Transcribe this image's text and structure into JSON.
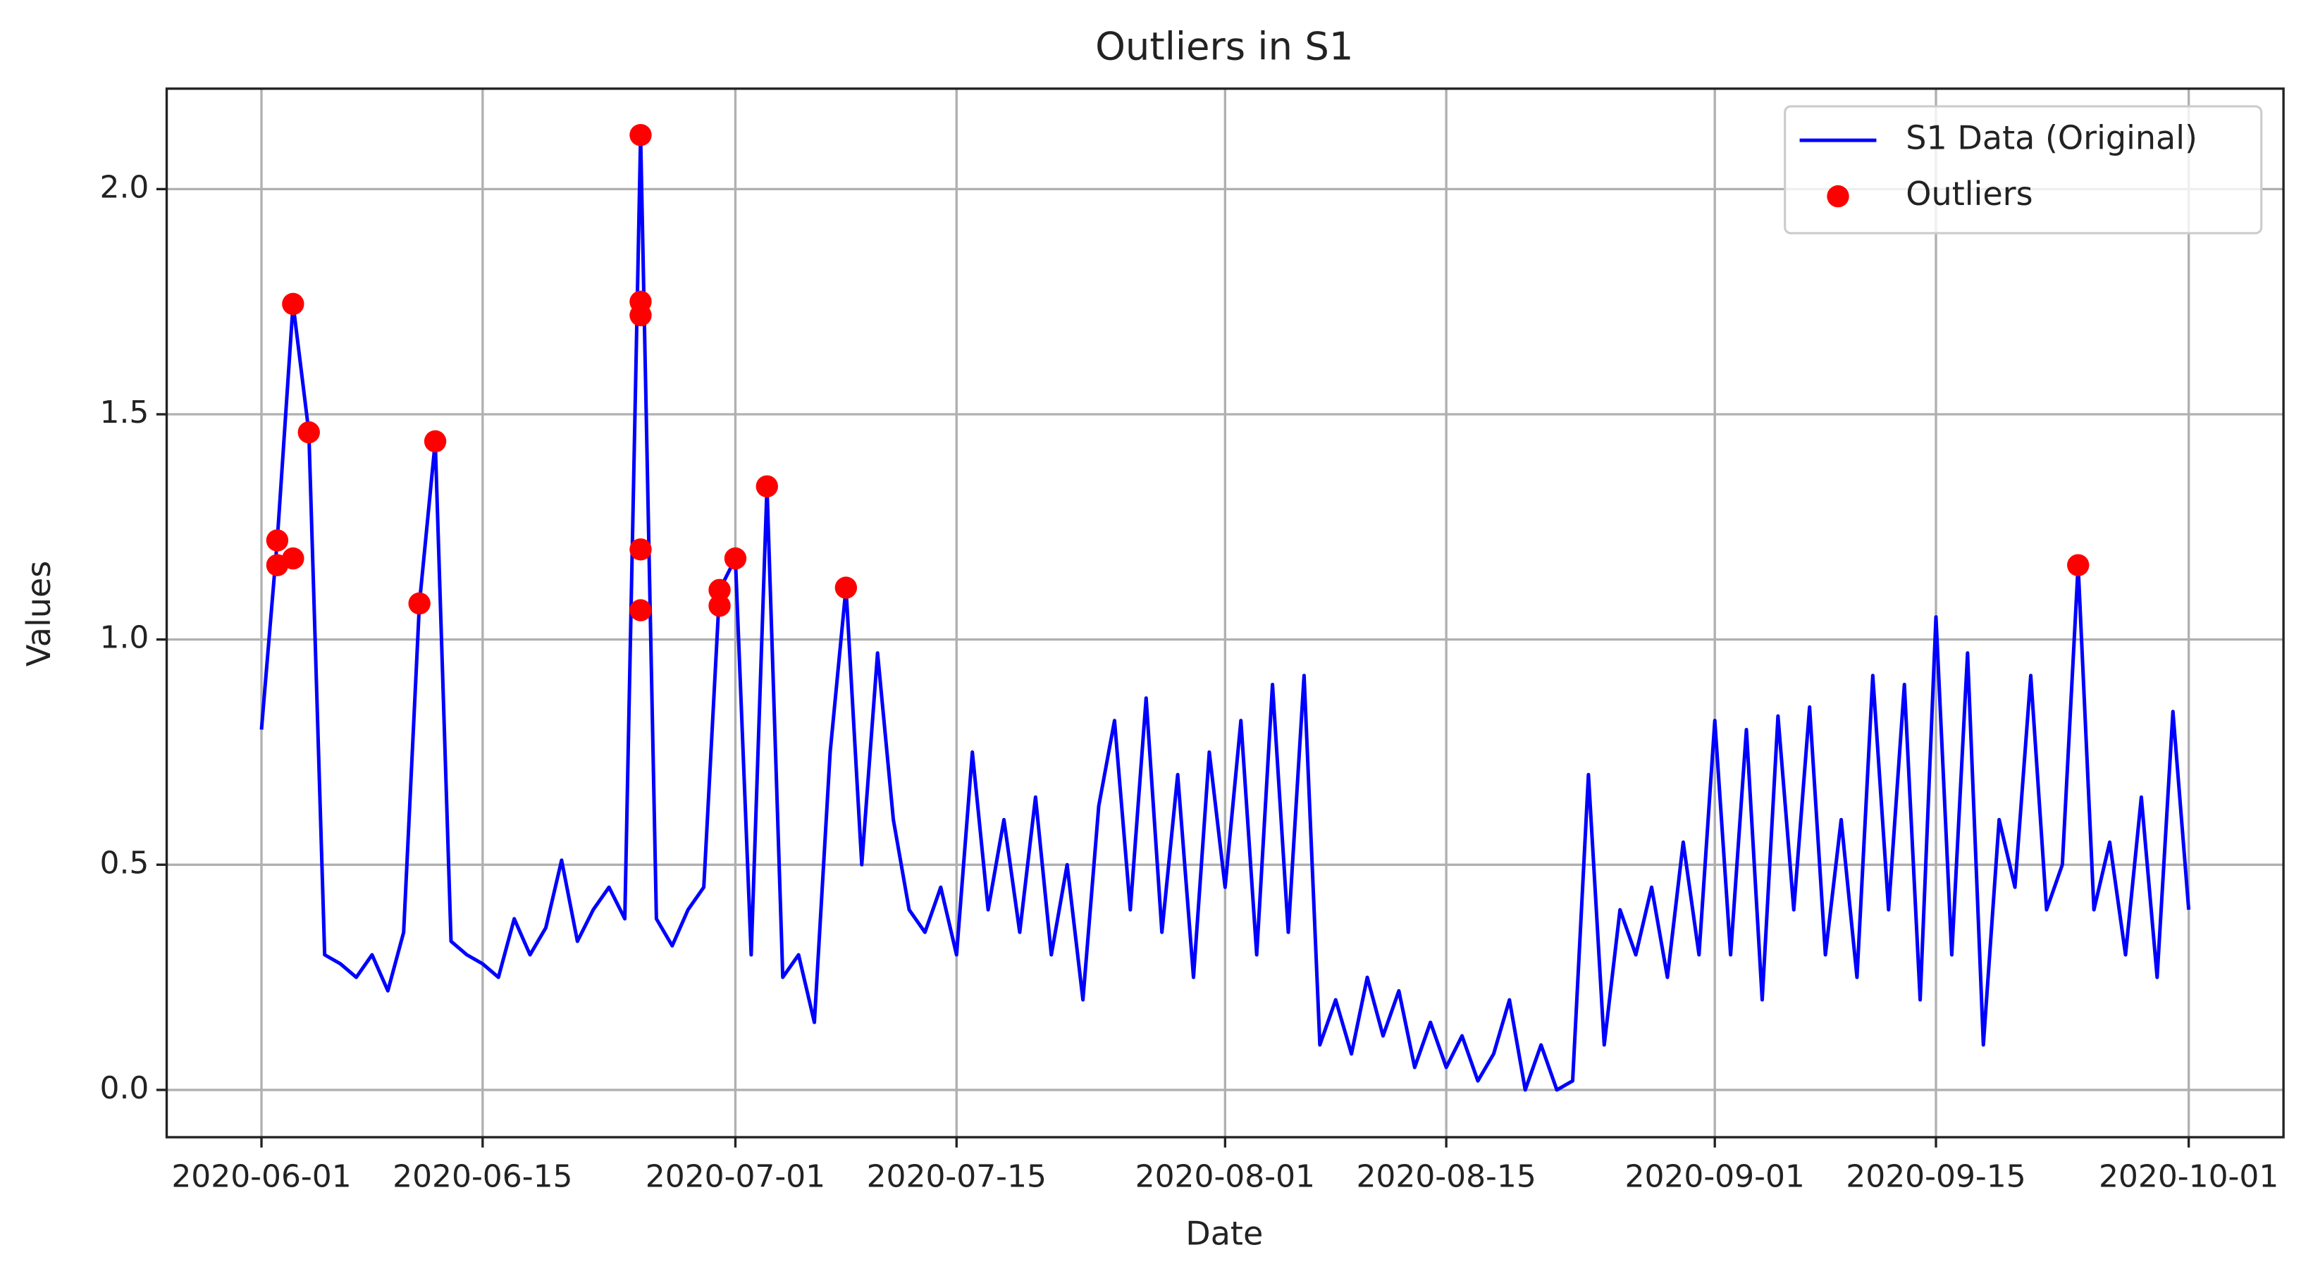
{
  "chart_data": {
    "type": "line",
    "title": "Outliers in S1",
    "xlabel": "Date",
    "ylabel": "Values",
    "grid": true,
    "legend": "upper right",
    "xlim": [
      "2020-05-26",
      "2020-10-07"
    ],
    "xticks": [
      "2020-06-01",
      "2020-06-15",
      "2020-07-01",
      "2020-07-15",
      "2020-08-01",
      "2020-08-15",
      "2020-09-01",
      "2020-09-15",
      "2020-10-01"
    ],
    "ylim": [
      -0.105,
      2.223
    ],
    "yticks": [
      {
        "value": 0,
        "label": "0.0"
      },
      0.5,
      {
        "value": 1,
        "label": "1.0"
      },
      1.5,
      {
        "value": 2,
        "label": "2.0"
      }
    ],
    "series": [
      {
        "name": "S1 Data (Original)",
        "type": "line",
        "color": "#0000ff",
        "x": [
          "2020-06-01",
          "2020-06-02",
          "2020-06-03",
          "2020-06-04",
          "2020-06-05",
          "2020-06-06",
          "2020-06-07",
          "2020-06-08",
          "2020-06-09",
          "2020-06-10",
          "2020-06-11",
          "2020-06-12",
          "2020-06-13",
          "2020-06-14",
          "2020-06-15",
          "2020-06-16",
          "2020-06-17",
          "2020-06-18",
          "2020-06-19",
          "2020-06-20",
          "2020-06-21",
          "2020-06-22",
          "2020-06-23",
          "2020-06-24",
          "2020-06-25",
          "2020-06-26",
          "2020-06-27",
          "2020-06-28",
          "2020-06-29",
          "2020-06-30",
          "2020-07-01",
          "2020-07-02",
          "2020-07-03",
          "2020-07-04",
          "2020-07-05",
          "2020-07-06",
          "2020-07-07",
          "2020-07-08",
          "2020-07-09",
          "2020-07-10",
          "2020-07-11",
          "2020-07-12",
          "2020-07-13",
          "2020-07-14",
          "2020-07-15",
          "2020-07-16",
          "2020-07-17",
          "2020-07-18",
          "2020-07-19",
          "2020-07-20",
          "2020-07-21",
          "2020-07-22",
          "2020-07-23",
          "2020-07-24",
          "2020-07-25",
          "2020-07-26",
          "2020-07-27",
          "2020-07-28",
          "2020-07-29",
          "2020-07-30",
          "2020-07-31",
          "2020-08-01",
          "2020-08-02",
          "2020-08-03",
          "2020-08-04",
          "2020-08-05",
          "2020-08-06",
          "2020-08-07",
          "2020-08-08",
          "2020-08-09",
          "2020-08-10",
          "2020-08-11",
          "2020-08-12",
          "2020-08-13",
          "2020-08-14",
          "2020-08-15",
          "2020-08-16",
          "2020-08-17",
          "2020-08-18",
          "2020-08-19",
          "2020-08-20",
          "2020-08-21",
          "2020-08-22",
          "2020-08-23",
          "2020-08-24",
          "2020-08-25",
          "2020-08-26",
          "2020-08-27",
          "2020-08-28",
          "2020-08-29",
          "2020-08-30",
          "2020-08-31",
          "2020-09-01",
          "2020-09-02",
          "2020-09-03",
          "2020-09-04",
          "2020-09-05",
          "2020-09-06",
          "2020-09-07",
          "2020-09-08",
          "2020-09-09",
          "2020-09-10",
          "2020-09-11",
          "2020-09-12",
          "2020-09-13",
          "2020-09-14",
          "2020-09-15",
          "2020-09-16",
          "2020-09-17",
          "2020-09-18",
          "2020-09-19",
          "2020-09-20",
          "2020-09-21",
          "2020-09-22",
          "2020-09-23",
          "2020-09-24",
          "2020-09-25",
          "2020-09-26",
          "2020-09-27",
          "2020-09-28",
          "2020-09-29",
          "2020-09-30",
          "2020-10-01"
        ],
        "values": [
          0.8,
          1.22,
          1.745,
          1.46,
          0.3,
          0.28,
          0.25,
          0.3,
          0.22,
          0.35,
          1.08,
          1.44,
          0.33,
          0.3,
          0.28,
          0.25,
          0.38,
          0.3,
          0.36,
          0.51,
          0.33,
          0.4,
          0.45,
          0.38,
          2.12,
          0.38,
          0.32,
          0.4,
          0.45,
          1.11,
          1.18,
          0.3,
          1.34,
          0.25,
          0.3,
          0.15,
          0.75,
          1.115,
          0.5,
          0.97,
          0.6,
          0.4,
          0.35,
          0.45,
          0.3,
          0.75,
          0.4,
          0.6,
          0.35,
          0.65,
          0.3,
          0.5,
          0.2,
          0.63,
          0.82,
          0.4,
          0.87,
          0.35,
          0.7,
          0.25,
          0.75,
          0.45,
          0.82,
          0.3,
          0.9,
          0.35,
          0.92,
          0.1,
          0.2,
          0.08,
          0.25,
          0.12,
          0.22,
          0.05,
          0.15,
          0.05,
          0.12,
          0.02,
          0.08,
          0.2,
          0.0,
          0.1,
          0.0,
          0.02,
          0.7,
          0.1,
          0.4,
          0.3,
          0.45,
          0.25,
          0.55,
          0.3,
          0.82,
          0.3,
          0.8,
          0.2,
          0.83,
          0.4,
          0.85,
          0.3,
          0.6,
          0.25,
          0.92,
          0.4,
          0.9,
          0.2,
          1.05,
          0.3,
          0.97,
          0.1,
          0.6,
          0.45,
          0.92,
          0.4,
          0.5,
          1.165,
          0.4,
          0.55,
          0.3,
          0.65,
          0.25,
          0.84,
          0.4
        ]
      },
      {
        "name": "Outliers",
        "type": "scatter",
        "color": "#ff0000",
        "x": [
          "2020-06-02",
          "2020-06-02",
          "2020-06-03",
          "2020-06-03",
          "2020-06-04",
          "2020-06-11",
          "2020-06-12",
          "2020-06-25",
          "2020-06-25",
          "2020-06-25",
          "2020-06-25",
          "2020-06-25",
          "2020-06-30",
          "2020-06-30",
          "2020-07-01",
          "2020-07-03",
          "2020-07-08",
          "2020-09-24"
        ],
        "values": [
          1.22,
          1.165,
          1.18,
          1.745,
          1.46,
          1.08,
          1.44,
          2.12,
          1.72,
          1.75,
          1.2,
          1.065,
          1.11,
          1.075,
          1.18,
          1.34,
          1.115,
          1.165
        ]
      }
    ]
  }
}
